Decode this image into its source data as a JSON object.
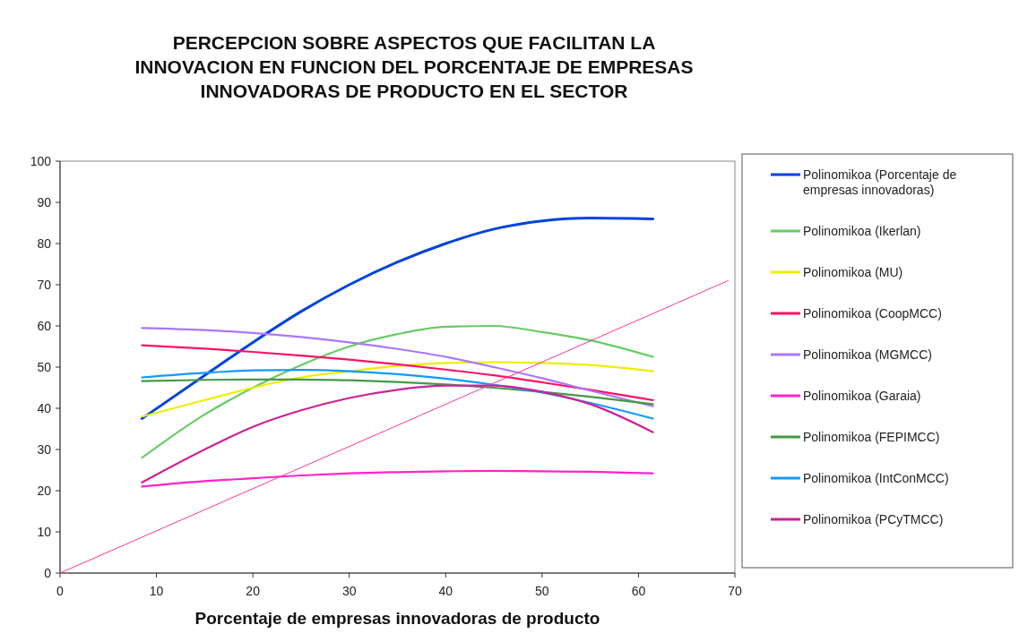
{
  "chart_data": {
    "type": "line",
    "title": "PERCEPCION SOBRE ASPECTOS QUE FACILITAN LA INNOVACION EN FUNCION DEL PORCENTAJE DE EMPRESAS INNOVADORAS DE PRODUCTO EN EL SECTOR",
    "xlabel": "Porcentaje de empresas innovadoras de producto",
    "x": [
      8.5,
      15,
      20,
      25,
      30,
      35,
      40,
      45,
      50,
      55,
      61.5
    ],
    "xlim": [
      0,
      70
    ],
    "xticks": [
      0,
      10,
      20,
      30,
      40,
      50,
      60,
      70
    ],
    "ylim": [
      0,
      100
    ],
    "yticks": [
      0,
      10,
      20,
      30,
      40,
      50,
      60,
      70,
      80,
      90,
      100
    ],
    "grid": false,
    "legend": "right",
    "marker": "none",
    "line_style": "solid",
    "series": [
      {
        "name": "Polinomikoa (Porcentaje de empresas innovadoras)",
        "color": "#0044dd",
        "values": [
          37.5,
          48,
          56,
          63.5,
          70,
          75.5,
          80,
          83.5,
          85.5,
          86.2,
          86
        ]
      },
      {
        "name": "Polinomikoa (Ikerlan)",
        "color": "#66cc66",
        "values": [
          28,
          38.5,
          45,
          50.5,
          55,
          58,
          59.8,
          60,
          58.5,
          56.5,
          52.5
        ]
      },
      {
        "name": "Polinomikoa (MU)",
        "color": "#eeee00",
        "values": [
          38,
          42,
          45,
          47.5,
          49,
          50.3,
          51,
          51.2,
          51,
          50.5,
          49
        ]
      },
      {
        "name": "Polinomikoa (CoopMCC)",
        "color": "#ff1166",
        "values": [
          55.3,
          54.5,
          53.7,
          52.8,
          51.8,
          50.7,
          49.4,
          48,
          46.3,
          44.5,
          42
        ]
      },
      {
        "name": "Polinomikoa (MGMCC)",
        "color": "#aa77ff",
        "values": [
          59.5,
          59,
          58.3,
          57.3,
          56,
          54.4,
          52.5,
          50,
          47.3,
          44.3,
          40.5
        ]
      },
      {
        "name": "Polinomikoa (Garaia)",
        "color": "#ff22cc",
        "values": [
          21,
          22.3,
          23,
          23.7,
          24.2,
          24.5,
          24.7,
          24.8,
          24.7,
          24.6,
          24.2
        ]
      },
      {
        "name": "Polinomikoa (FEPIMCC)",
        "color": "#449944",
        "values": [
          46.6,
          46.9,
          47,
          47,
          46.8,
          46.4,
          45.8,
          45,
          44,
          42.8,
          41
        ]
      },
      {
        "name": "Polinomikoa (IntConMCC)",
        "color": "#1199ff",
        "values": [
          47.5,
          48.6,
          49.2,
          49.3,
          49,
          48.3,
          47.2,
          45.7,
          43.8,
          41.3,
          37.5
        ]
      },
      {
        "name": "Polinomikoa (PCyTMCC)",
        "color": "#cc2299",
        "values": [
          22,
          30,
          35.5,
          39.5,
          42.5,
          44.5,
          45.5,
          45.5,
          44,
          41,
          34.2
        ]
      },
      {
        "color": "#ff3399",
        "x": [
          0,
          69.3
        ],
        "values": [
          0,
          71
        ]
      }
    ]
  }
}
